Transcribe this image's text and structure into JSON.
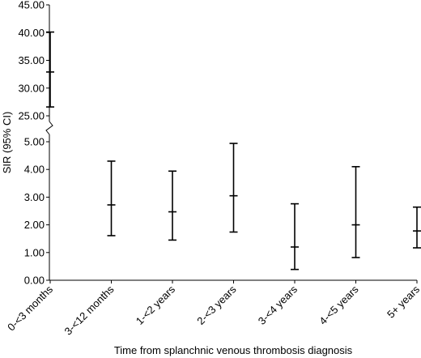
{
  "chart_data": {
    "type": "errorbar",
    "title": "",
    "xlabel": "Time from splanchnic venous thrombosis diagnosis",
    "ylabel": "SIR (95% CI)",
    "axis_break": {
      "lower_max": 5.0,
      "upper_min": 25.0
    },
    "ylim_lower": [
      0,
      5
    ],
    "ylim_upper": [
      25,
      45
    ],
    "yticks_lower": [
      "0.00",
      "1.00",
      "2.00",
      "3.00",
      "4.00",
      "5.00"
    ],
    "yticks_upper": [
      "25.00",
      "30.00",
      "35.00",
      "40.00",
      "45.00"
    ],
    "categories": [
      "0-<3 months",
      "3-<12 months",
      "1-<2 years",
      "2-<3 years",
      "3-<4 years",
      "4-<5 years",
      "5+ years"
    ],
    "series": [
      {
        "estimate": [
          32.9,
          2.72,
          2.47,
          3.05,
          1.2,
          2.0,
          1.78
        ],
        "lower": [
          26.6,
          1.61,
          1.45,
          1.74,
          0.39,
          0.82,
          1.17
        ],
        "upper": [
          40.1,
          4.3,
          3.94,
          4.94,
          2.76,
          4.1,
          2.64
        ]
      }
    ],
    "grid": false,
    "legend": "none"
  }
}
